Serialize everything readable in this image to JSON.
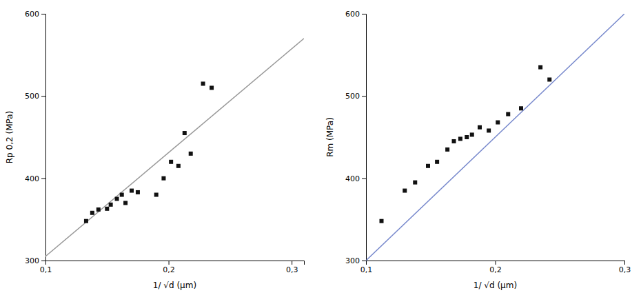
{
  "chart_data": [
    {
      "type": "scatter",
      "xlabel": "1/ √d (µm)",
      "ylabel": "Rp 0,2 (MPa)",
      "xlim": [
        0.1,
        0.31
      ],
      "ylim": [
        300,
        600
      ],
      "xticks": [
        {
          "value": 0.1,
          "label": "0,1"
        },
        {
          "value": 0.2,
          "label": "0,2"
        },
        {
          "value": 0.3,
          "label": "0,3"
        }
      ],
      "yticks": [
        300,
        400,
        500,
        600
      ],
      "grid": false,
      "series": [
        {
          "type": "line",
          "color": "#999999",
          "line_style": "solid",
          "x": [
            0.1,
            0.31
          ],
          "values": [
            305,
            570
          ]
        },
        {
          "type": "scatter",
          "color": "#111111",
          "marker": "square",
          "x": [
            0.133,
            0.138,
            0.143,
            0.15,
            0.153,
            0.158,
            0.162,
            0.165,
            0.17,
            0.175,
            0.19,
            0.196,
            0.202,
            0.208,
            0.213,
            0.218,
            0.228,
            0.235
          ],
          "values": [
            348,
            358,
            362,
            363,
            368,
            375,
            380,
            370,
            385,
            383,
            380,
            400,
            420,
            415,
            455,
            430,
            515,
            510
          ]
        }
      ]
    },
    {
      "type": "scatter",
      "xlabel": "1/ √d (µm)",
      "ylabel": "Rm (MPa)",
      "xlim": [
        0.1,
        0.3
      ],
      "ylim": [
        300,
        600
      ],
      "xticks": [
        {
          "value": 0.1,
          "label": "0,1"
        },
        {
          "value": 0.2,
          "label": "0,2"
        },
        {
          "value": 0.3,
          "label": "0,3"
        }
      ],
      "yticks": [
        300,
        400,
        500,
        600
      ],
      "grid": false,
      "series": [
        {
          "type": "line",
          "color": "#7788cc",
          "line_style": "solid",
          "x": [
            0.1,
            0.3
          ],
          "values": [
            300,
            600
          ]
        },
        {
          "type": "scatter",
          "color": "#111111",
          "marker": "square",
          "x": [
            0.112,
            0.13,
            0.138,
            0.148,
            0.155,
            0.163,
            0.168,
            0.173,
            0.178,
            0.182,
            0.188,
            0.195,
            0.202,
            0.21,
            0.22,
            0.235,
            0.242
          ],
          "values": [
            348,
            385,
            395,
            415,
            420,
            435,
            445,
            448,
            450,
            453,
            462,
            458,
            468,
            478,
            485,
            535,
            520
          ]
        }
      ]
    }
  ]
}
